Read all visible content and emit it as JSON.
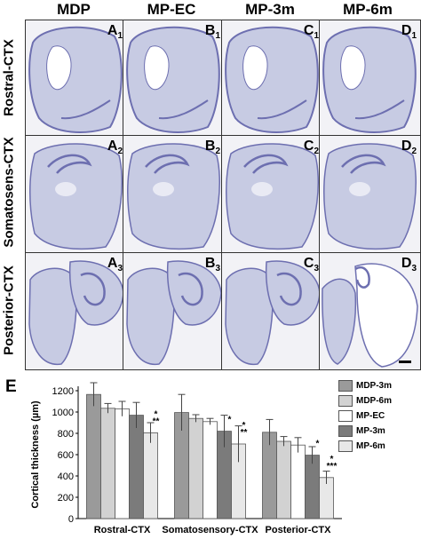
{
  "figure": {
    "columns": [
      "MDP",
      "MP-EC",
      "MP-3m",
      "MP-6m"
    ],
    "rows": [
      "Rostral-CTX",
      "Somatosens-CTX",
      "Posterior-CTX"
    ],
    "panels": [
      {
        "letter": "A",
        "sub": "1"
      },
      {
        "letter": "B",
        "sub": "1"
      },
      {
        "letter": "C",
        "sub": "1"
      },
      {
        "letter": "D",
        "sub": "1"
      },
      {
        "letter": "A",
        "sub": "2"
      },
      {
        "letter": "B",
        "sub": "2"
      },
      {
        "letter": "C",
        "sub": "2"
      },
      {
        "letter": "D",
        "sub": "2"
      },
      {
        "letter": "A",
        "sub": "3"
      },
      {
        "letter": "B",
        "sub": "3"
      },
      {
        "letter": "C",
        "sub": "3"
      },
      {
        "letter": "D",
        "sub": "3"
      }
    ],
    "panel_E_label": "E"
  },
  "colors": {
    "stain_bg": "#c7cbe3",
    "stain_dark": "#6d6fb0",
    "bar_colors": [
      "#9a9a9a",
      "#d2d2d2",
      "#ffffff",
      "#7b7b7b",
      "#e8e8e8"
    ]
  },
  "chart_data": {
    "type": "bar",
    "categories": [
      "Rostral-CTX",
      "Somatosensory-CTX",
      "Posterior-CTX"
    ],
    "ylabel": "Cortical thickness (µm)",
    "ylim": [
      0,
      1200
    ],
    "yticks": [
      0,
      200,
      400,
      600,
      800,
      1000,
      1200
    ],
    "series": [
      {
        "name": "MDP-3m",
        "values": [
          1165,
          995,
          810
        ],
        "errors": [
          110,
          170,
          120
        ]
      },
      {
        "name": "MDP-6m",
        "values": [
          1035,
          940,
          725
        ],
        "errors": [
          45,
          35,
          45
        ]
      },
      {
        "name": "MP-EC",
        "values": [
          1030,
          910,
          690
        ],
        "errors": [
          70,
          30,
          70
        ]
      },
      {
        "name": "MP-3m",
        "values": [
          970,
          820,
          595
        ],
        "errors": [
          120,
          150,
          80
        ]
      },
      {
        "name": "MP-6m",
        "values": [
          805,
          700,
          385
        ],
        "errors": [
          95,
          170,
          60
        ]
      }
    ],
    "annotations": [
      {
        "category": "Rostral-CTX",
        "series": "MP-6m",
        "text": [
          "*",
          "**"
        ]
      },
      {
        "category": "Somatosensory-CTX",
        "series": "MP-3m",
        "text": [
          "*"
        ]
      },
      {
        "category": "Somatosensory-CTX",
        "series": "MP-6m",
        "text": [
          "*",
          "**"
        ]
      },
      {
        "category": "Posterior-CTX",
        "series": "MP-3m",
        "text": [
          "*"
        ]
      },
      {
        "category": "Posterior-CTX",
        "series": "MP-6m",
        "text": [
          "*",
          "***"
        ]
      }
    ]
  }
}
